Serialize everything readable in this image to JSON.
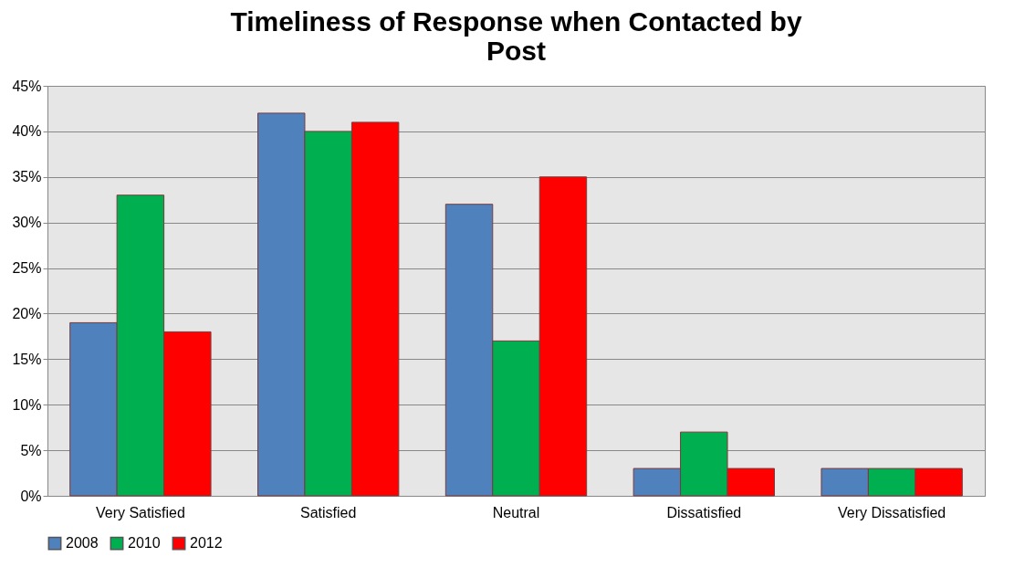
{
  "chart_data": {
    "type": "bar",
    "title": "Timeliness of Response when Contacted by Post",
    "categories": [
      "Very Satisfied",
      "Satisfied",
      "Neutral",
      "Dissatisfied",
      "Very Dissatisfied"
    ],
    "series": [
      {
        "name": "2008",
        "color": "#4f81bd",
        "values": [
          19,
          42,
          32,
          3,
          3
        ]
      },
      {
        "name": "2010",
        "color": "#00b050",
        "values": [
          33,
          40,
          17,
          7,
          3
        ]
      },
      {
        "name": "2012",
        "color": "#ff0000",
        "values": [
          18,
          41,
          35,
          3,
          3
        ]
      }
    ],
    "ylim": [
      0,
      45
    ],
    "yticks": [
      {
        "value": 0,
        "label": "0%"
      },
      {
        "value": 5,
        "label": "5%"
      },
      {
        "value": 10,
        "label": "10%"
      },
      {
        "value": 15,
        "label": "15%"
      },
      {
        "value": 20,
        "label": "20%"
      },
      {
        "value": 25,
        "label": "25%"
      },
      {
        "value": 30,
        "label": "30%"
      },
      {
        "value": 35,
        "label": "35%"
      },
      {
        "value": 40,
        "label": "40%"
      },
      {
        "value": 45,
        "label": "45%"
      }
    ],
    "grid": "y",
    "legend": "bottom"
  }
}
